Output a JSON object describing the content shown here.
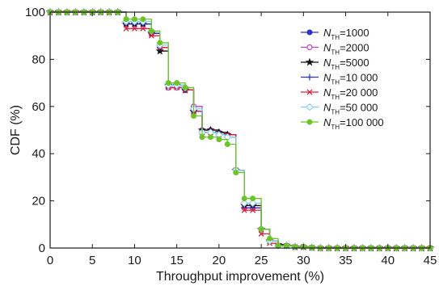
{
  "chart_data": {
    "type": "line",
    "title": "",
    "xlabel": "Throughput improvement (%)",
    "ylabel": "CDF (%)",
    "xlim": [
      0,
      45
    ],
    "ylim": [
      0,
      100
    ],
    "xticks": [
      "0",
      "5",
      "10",
      "15",
      "20",
      "25",
      "30",
      "35",
      "40",
      "45"
    ],
    "yticks": [
      "0",
      "20",
      "40",
      "60",
      "80",
      "100"
    ],
    "grid": false,
    "legend_position": "top-right",
    "step_style": "post",
    "series": [
      {
        "name": "N_TH=1000",
        "name_prefix": "N",
        "name_sub": "TH",
        "name_suffix": "=1000",
        "color": "#2b35c8",
        "marker": "circle-filled",
        "x": [
          0,
          1,
          2,
          3,
          4,
          5,
          6,
          7,
          8,
          9,
          10,
          11,
          12,
          13,
          14,
          15,
          16,
          17,
          18,
          19,
          20,
          21,
          22,
          23,
          24,
          25,
          26,
          27,
          28,
          29,
          30,
          31,
          32,
          33,
          34,
          35,
          36,
          37,
          38,
          39,
          40,
          41,
          42,
          43,
          44,
          45
        ],
        "y": [
          100,
          100,
          100,
          100,
          100,
          100,
          100,
          100,
          100,
          95,
          95,
          95,
          91,
          85,
          68,
          68,
          67,
          58,
          50,
          50,
          49,
          48,
          33,
          17,
          17,
          8,
          3,
          1,
          1,
          0.5,
          0.5,
          0.2,
          0,
          0,
          0,
          0,
          0,
          0,
          0,
          0,
          0,
          0,
          0,
          0,
          0,
          0
        ]
      },
      {
        "name": "N_TH=2000",
        "name_prefix": "N",
        "name_sub": "TH",
        "name_suffix": "=2000",
        "color": "#c63cc6",
        "marker": "circle-open",
        "x": [
          0,
          1,
          2,
          3,
          4,
          5,
          6,
          7,
          8,
          9,
          10,
          11,
          12,
          13,
          14,
          15,
          16,
          17,
          18,
          19,
          20,
          21,
          22,
          23,
          24,
          25,
          26,
          27,
          28,
          29,
          30,
          31,
          32,
          33,
          34,
          35,
          36,
          37,
          38,
          39,
          40,
          41,
          42,
          43,
          44,
          45
        ],
        "y": [
          100,
          100,
          100,
          100,
          100,
          100,
          100,
          100,
          100,
          95,
          95,
          95,
          91,
          85,
          68,
          68,
          67,
          60,
          50,
          50,
          49,
          48,
          33,
          17,
          17,
          8,
          3,
          1,
          1,
          0.5,
          0.5,
          0.2,
          0,
          0,
          0,
          0,
          0,
          0,
          0,
          0,
          0,
          0,
          0,
          0,
          0,
          0
        ]
      },
      {
        "name": "N_TH=5000",
        "name_prefix": "N",
        "name_sub": "TH",
        "name_suffix": "=5000",
        "color": "#111111",
        "marker": "star",
        "x": [
          0,
          1,
          2,
          3,
          4,
          5,
          6,
          7,
          8,
          9,
          10,
          11,
          12,
          13,
          14,
          15,
          16,
          17,
          18,
          19,
          20,
          21,
          22,
          23,
          24,
          25,
          26,
          27,
          28,
          29,
          30,
          31,
          32,
          33,
          34,
          35,
          36,
          37,
          38,
          39,
          40,
          41,
          42,
          43,
          44,
          45
        ],
        "y": [
          100,
          100,
          100,
          100,
          100,
          100,
          100,
          100,
          100,
          95,
          95,
          95,
          91,
          83.5,
          69,
          69,
          67,
          58,
          50,
          50,
          49,
          48,
          33,
          18,
          18,
          8,
          3,
          1.5,
          1,
          0.5,
          0.5,
          0.2,
          0,
          0,
          0,
          0,
          0,
          0,
          0,
          0,
          0,
          0,
          0,
          0,
          0,
          0
        ]
      },
      {
        "name": "N_TH=10 000",
        "name_prefix": "N",
        "name_sub": "TH",
        "name_suffix": "=10 000",
        "color": "#2b35c8",
        "marker": "plus",
        "x": [
          0,
          1,
          2,
          3,
          4,
          5,
          6,
          7,
          8,
          9,
          10,
          11,
          12,
          13,
          14,
          15,
          16,
          17,
          18,
          19,
          20,
          21,
          22,
          23,
          24,
          25,
          26,
          27,
          28,
          29,
          30,
          31,
          32,
          33,
          34,
          35,
          36,
          37,
          38,
          39,
          40,
          41,
          42,
          43,
          44,
          45
        ],
        "y": [
          100,
          100,
          100,
          100,
          100,
          100,
          100,
          100,
          100,
          95,
          95,
          95,
          91,
          85,
          69,
          69,
          67,
          58,
          49,
          49,
          48,
          47,
          33,
          17,
          17,
          8,
          3,
          1,
          1,
          0.5,
          0.5,
          0.2,
          0,
          0,
          0,
          0,
          0,
          0,
          0,
          0,
          0,
          0,
          0,
          0,
          0,
          0
        ]
      },
      {
        "name": "N_TH=20 000",
        "name_prefix": "N",
        "name_sub": "TH",
        "name_suffix": "=20 000",
        "color": "#e0203a",
        "marker": "x",
        "x": [
          0,
          1,
          2,
          3,
          4,
          5,
          6,
          7,
          8,
          9,
          10,
          11,
          12,
          13,
          14,
          15,
          16,
          17,
          18,
          19,
          20,
          21,
          22,
          23,
          24,
          25,
          26,
          27,
          28,
          29,
          30,
          31,
          32,
          33,
          34,
          35,
          36,
          37,
          38,
          39,
          40,
          41,
          42,
          43,
          44,
          45
        ],
        "y": [
          100,
          100,
          100,
          100,
          100,
          100,
          100,
          100,
          100,
          93,
          93,
          93,
          90,
          85,
          68,
          68,
          67,
          58,
          49,
          49,
          48,
          48,
          33,
          16,
          16,
          6,
          2,
          1,
          1,
          0.5,
          0.5,
          0.2,
          0,
          0,
          0,
          0,
          0,
          0,
          0,
          0,
          0,
          0,
          0,
          0,
          0,
          0
        ]
      },
      {
        "name": "N_TH=50 000",
        "name_prefix": "N",
        "name_sub": "TH",
        "name_suffix": "=50 000",
        "color": "#7fd0ee",
        "marker": "diamond-open",
        "x": [
          0,
          1,
          2,
          3,
          4,
          5,
          6,
          7,
          8,
          9,
          10,
          11,
          12,
          13,
          14,
          15,
          16,
          17,
          18,
          19,
          20,
          21,
          22,
          23,
          24,
          25,
          26,
          27,
          28,
          29,
          30,
          31,
          32,
          33,
          34,
          35,
          36,
          37,
          38,
          39,
          40,
          41,
          42,
          43,
          44,
          45
        ],
        "y": [
          100,
          100,
          100,
          100,
          100,
          100,
          100,
          100,
          100,
          96,
          96,
          96,
          92,
          86,
          69,
          69,
          68,
          59,
          49,
          49,
          48,
          47,
          33,
          19,
          19,
          8,
          3,
          1,
          1,
          0.5,
          0.5,
          0.2,
          0,
          0,
          0,
          0,
          0,
          0,
          0,
          0,
          0,
          0,
          0,
          0,
          0,
          0
        ]
      },
      {
        "name": "N_TH=100 000",
        "name_prefix": "N",
        "name_sub": "TH",
        "name_suffix": "=100 000",
        "color": "#6cc427",
        "marker": "circle-filled",
        "x": [
          0,
          1,
          2,
          3,
          4,
          5,
          6,
          7,
          8,
          9,
          10,
          11,
          12,
          13,
          14,
          15,
          16,
          17,
          18,
          19,
          20,
          21,
          22,
          23,
          24,
          25,
          26,
          27,
          28,
          29,
          30,
          31,
          32,
          33,
          34,
          35,
          36,
          37,
          38,
          39,
          40,
          41,
          42,
          43,
          44,
          45
        ],
        "y": [
          100,
          100,
          100,
          100,
          100,
          100,
          100,
          100,
          100,
          97,
          97,
          97,
          92,
          87,
          70,
          70,
          68,
          56,
          47,
          47,
          46,
          44,
          32,
          21,
          21,
          8,
          4,
          1,
          1,
          0.5,
          0.5,
          0.2,
          0,
          0,
          0,
          0,
          0,
          0,
          0,
          0,
          0,
          0,
          0,
          0,
          0,
          0
        ]
      }
    ]
  }
}
